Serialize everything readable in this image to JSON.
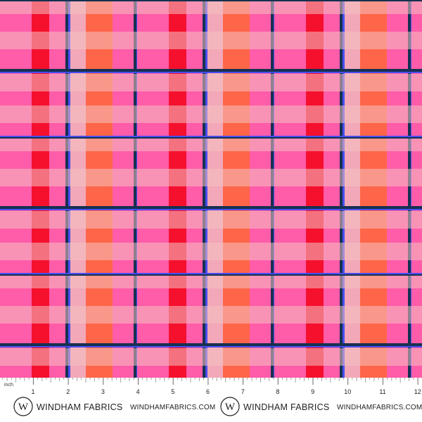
{
  "ruler": {
    "unit": "inch",
    "numbers": [
      1,
      2,
      3,
      4,
      5,
      6,
      7,
      8,
      9,
      10,
      11,
      12
    ]
  },
  "brands": [
    {
      "name": "WINDHAM FABRICS",
      "url": "WINDHAMFABRICS.COM"
    },
    {
      "name": "WINDHAM FABRICS",
      "url": "WINDHAMFABRICS.COM"
    }
  ]
}
